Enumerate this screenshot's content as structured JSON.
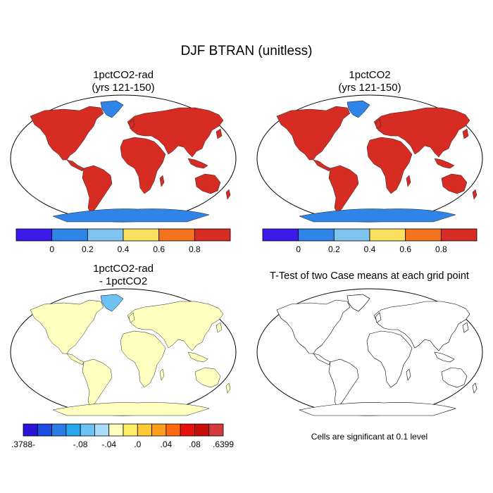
{
  "figure": {
    "title": "DJF BTRAN (unitless)"
  },
  "panels": {
    "top_left": {
      "title": "1pctCO2-rad\n(yrs 121-150)"
    },
    "top_right": {
      "title": "1pctCO2\n(yrs 121-150)"
    },
    "bottom_left": {
      "title": "1pctCO2-rad\n- 1pctCO2"
    },
    "bottom_right": {
      "title": "T-Test of two Case means at each grid point",
      "note": "Cells are significant at 0.1 level"
    }
  },
  "colorbars": {
    "btran": {
      "colors": [
        "#3a1ae8",
        "#2f84e8",
        "#7fc4ee",
        "#fbe060",
        "#f5731f",
        "#d72c24"
      ],
      "labels": [
        "0",
        "0.2",
        "0.4",
        "0.6",
        "0.8"
      ]
    },
    "diff": {
      "colors": [
        "#2817d9",
        "#1c4ee2",
        "#2f7be6",
        "#28a7ec",
        "#6cc2f2",
        "#a9dcf6",
        "#ffffc0",
        "#ffee66",
        "#ffc933",
        "#ff9e1a",
        "#ff6a10",
        "#e8120c",
        "#c80e0b",
        "#d43a3a"
      ],
      "labels": [
        ".3788-",
        "-.08",
        "-.04",
        ".0",
        ".04",
        ".08",
        ".6399"
      ]
    }
  },
  "map_colors": {
    "ocean": "#ffffff",
    "land_wet": "#d72c24",
    "land_dry": "#2f84e8",
    "land_mid": "#f5731f",
    "antarctica": "#2f84e8",
    "diff_land": "#ffffc0",
    "diff_pos": "#c81e1e",
    "diff_neg": "#6cc2f2",
    "ttest_sig": "#ee0000"
  }
}
